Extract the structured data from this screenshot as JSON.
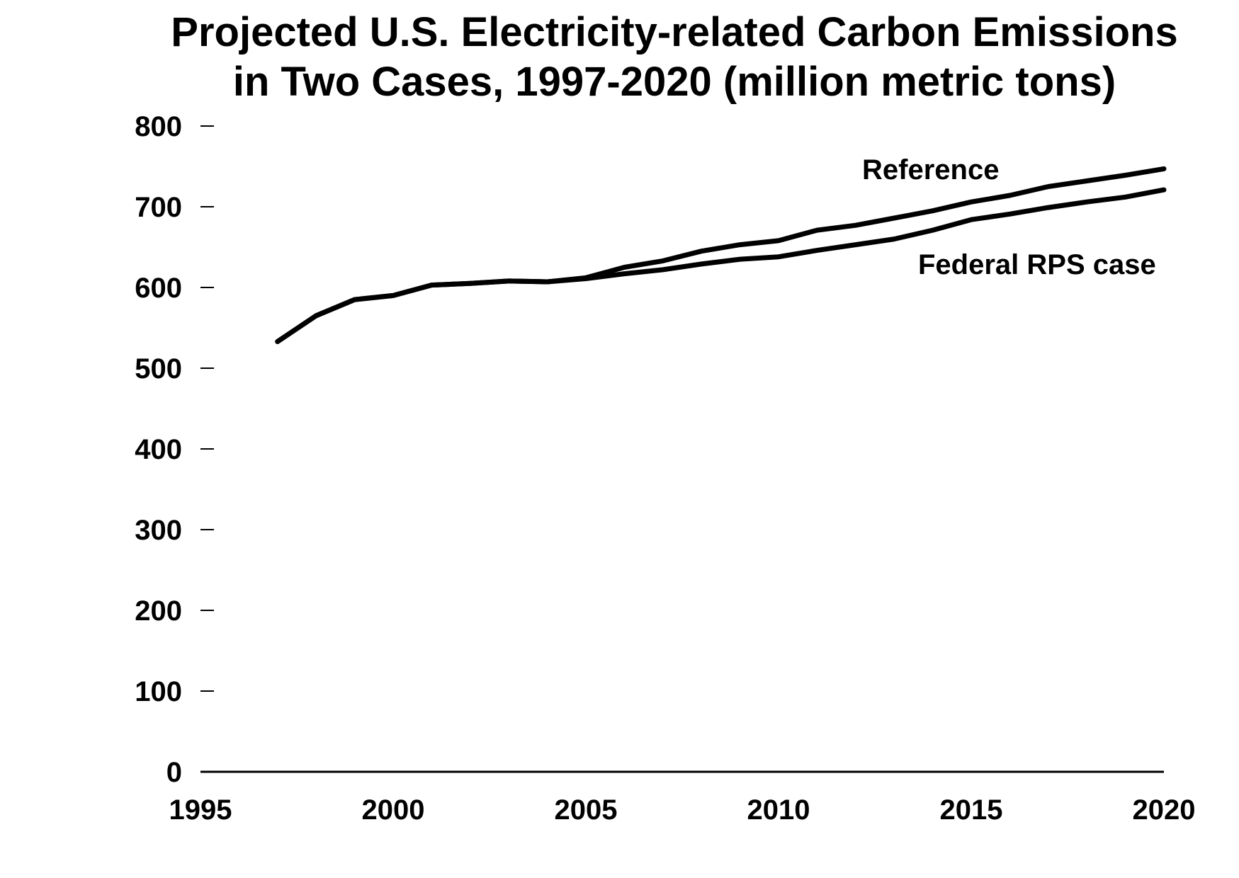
{
  "chart_data": {
    "type": "line",
    "title": "Projected U.S. Electricity-related Carbon Emissions in Two Cases, 1997-2020 (million metric tons)",
    "title_lines": [
      "Projected U.S. Electricity-related Carbon Emissions",
      "in Two Cases, 1997-2020 (million metric tons)"
    ],
    "xlabel": "",
    "ylabel": "",
    "xlim": [
      1995,
      2020
    ],
    "ylim": [
      0,
      800
    ],
    "x_ticks": [
      1995,
      2000,
      2005,
      2010,
      2015,
      2020
    ],
    "y_ticks": [
      0,
      100,
      200,
      300,
      400,
      500,
      600,
      700,
      800
    ],
    "grid": false,
    "legend": "inline-labels",
    "line_color": "#000000",
    "x": [
      1997,
      1998,
      1999,
      2000,
      2001,
      2002,
      2003,
      2004,
      2005,
      2006,
      2007,
      2008,
      2009,
      2010,
      2011,
      2012,
      2013,
      2014,
      2015,
      2016,
      2017,
      2018,
      2019,
      2020
    ],
    "series": [
      {
        "name": "Reference",
        "values": [
          533,
          565,
          585,
          590,
          603,
          605,
          608,
          607,
          612,
          625,
          633,
          645,
          653,
          658,
          671,
          677,
          686,
          695,
          706,
          714,
          725,
          732,
          739,
          747
        ]
      },
      {
        "name": "Federal RPS case",
        "values": [
          533,
          565,
          585,
          590,
          603,
          605,
          608,
          607,
          611,
          617,
          622,
          629,
          635,
          638,
          646,
          653,
          660,
          671,
          684,
          691,
          699,
          706,
          712,
          721
        ]
      }
    ]
  }
}
